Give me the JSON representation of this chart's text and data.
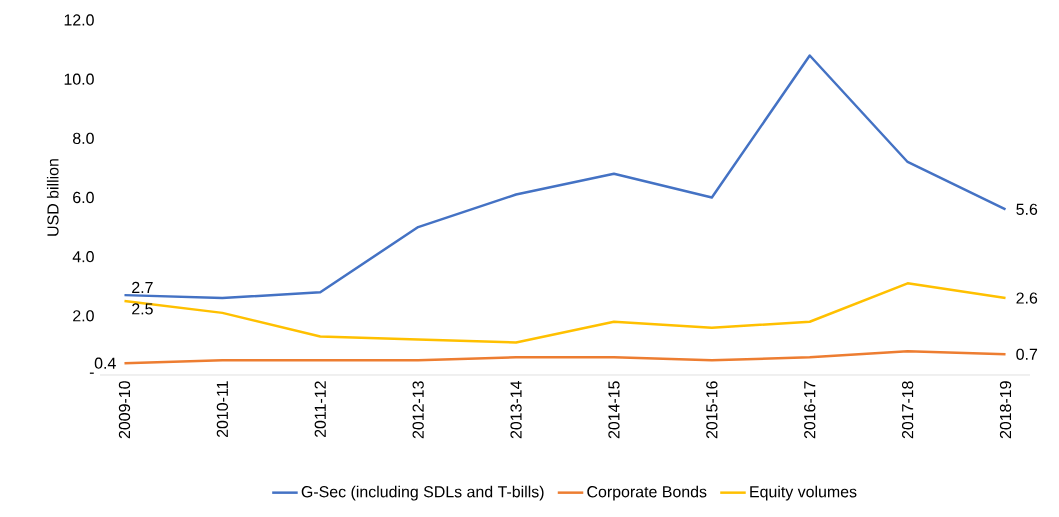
{
  "chart_data": {
    "type": "line",
    "ylabel": "USD billion",
    "categories": [
      "2009-10",
      "2010-11",
      "2011-12",
      "2012-13",
      "2013-14",
      "2014-15",
      "2015-16",
      "2016-17",
      "2017-18",
      "2018-19"
    ],
    "series": [
      {
        "name": "G-Sec (including SDLs and T-bills)",
        "color": "#4472c4",
        "values": [
          2.7,
          2.6,
          2.8,
          5.0,
          6.1,
          6.8,
          6.0,
          10.8,
          7.2,
          5.6
        ],
        "value_labels": [
          "2.7",
          null,
          null,
          null,
          null,
          null,
          null,
          null,
          null,
          "5.6"
        ]
      },
      {
        "name": "Corporate Bonds",
        "color": "#ed7d31",
        "values": [
          0.4,
          0.5,
          0.5,
          0.5,
          0.6,
          0.6,
          0.5,
          0.6,
          0.8,
          0.7
        ],
        "value_labels": [
          "0.4",
          null,
          null,
          null,
          null,
          null,
          null,
          null,
          null,
          "0.7"
        ]
      },
      {
        "name": "Equity volumes",
        "color": "#ffc000",
        "values": [
          2.5,
          2.1,
          1.3,
          1.2,
          1.1,
          1.8,
          1.6,
          1.8,
          3.1,
          2.6
        ],
        "value_labels": [
          "2.5",
          null,
          null,
          null,
          null,
          null,
          null,
          null,
          null,
          "2.6"
        ]
      }
    ],
    "ylim": [
      0,
      12
    ],
    "yticks": [
      {
        "value": 0,
        "label": "-"
      },
      {
        "value": 2,
        "label": "2.0"
      },
      {
        "value": 4,
        "label": "4.0"
      },
      {
        "value": 6,
        "label": "6.0"
      },
      {
        "value": 8,
        "label": "8.0"
      },
      {
        "value": 10,
        "label": "10.0"
      },
      {
        "value": 12,
        "label": "12.0"
      }
    ],
    "grid": false,
    "legend": "bottom",
    "marker": "none",
    "line_style": "solid"
  }
}
